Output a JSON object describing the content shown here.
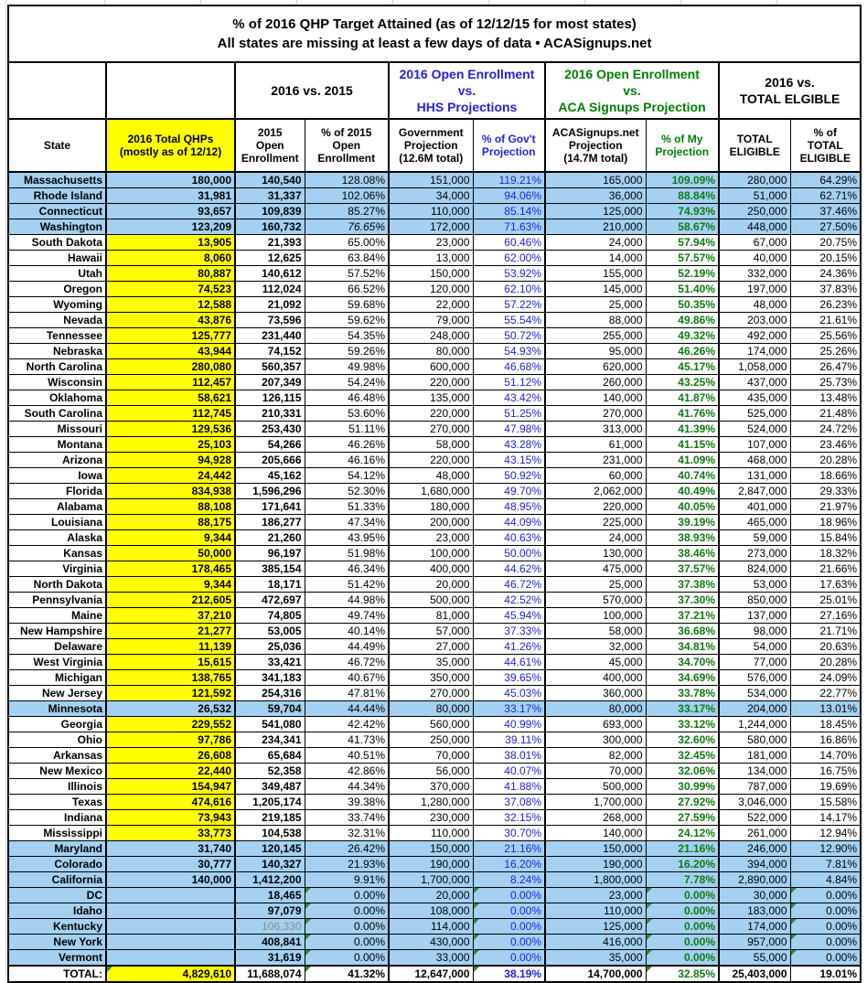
{
  "title": {
    "line1": "% of 2016 QHP Target Attained (as of 12/12/15 for most states)",
    "line2": "All states are missing at least a few days of data • ACASignups.net"
  },
  "groups": {
    "vs2015": "2016 vs. 2015",
    "hhs": "2016 Open Enrollment\nvs.\nHHS Projections",
    "aca": "2016 Open Enrollment\nvs.\nACA Signups Projection",
    "eligible": "2016 vs.\nTOTAL ELGIBLE"
  },
  "colors": {
    "highlight_row_blue": "#A4D1F2",
    "qhp_yellow": "#FFFF00",
    "hhs_blue": "#2222DD",
    "aca_green": "#008000",
    "value_green_bold": "#0F7A0F",
    "error_triangle_green": "#2E8B2E",
    "muted_gray": "#8C8C8C"
  },
  "chart_data": {
    "type": "table",
    "title": "% of 2016 QHP Target Attained (as of 12/12/15 for most states)",
    "subtitle": "All states are missing at least a few days of data • ACASignups.net",
    "columns": [
      "State",
      "2016 Total QHPs\n(mostly as of 12/12)",
      "2015\nOpen\nEnrollment",
      "% of 2015\nOpen\nEnrollment",
      "Government\nProjection\n(12.6M total)",
      "% of Gov't\nProjection",
      "ACASignups.net\nProjection\n(14.7M total)",
      "% of My\nProjection",
      "TOTAL\nELIGIBLE",
      "% of\nTOTAL\nELIGIBLE"
    ],
    "rows": [
      {
        "c": [
          "Massachusetts",
          "180,000",
          "140,540",
          "128.08%",
          "151,000",
          "119.21%",
          "165,000",
          "109.09%",
          "280,000",
          "64.29%"
        ],
        "hl": true
      },
      {
        "c": [
          "Rhode Island",
          "31,981",
          "31,337",
          "102.06%",
          "34,000",
          "94.06%",
          "36,000",
          "88.84%",
          "51,000",
          "62.71%"
        ],
        "hl": true
      },
      {
        "c": [
          "Connecticut",
          "93,657",
          "109,839",
          "85.27%",
          "110,000",
          "85.14%",
          "125,000",
          "74.93%",
          "250,000",
          "37.46%"
        ],
        "hl": true
      },
      {
        "c": [
          "Washington",
          "123,209",
          "160,732",
          "76.65%",
          "172,000",
          "71.63%",
          "210,000",
          "58.67%",
          "448,000",
          "27.50%"
        ],
        "hl": true,
        "it": true
      },
      {
        "c": [
          "South Dakota",
          "13,905",
          "21,393",
          "65.00%",
          "23,000",
          "60.46%",
          "24,000",
          "57.94%",
          "67,000",
          "20.75%"
        ]
      },
      {
        "c": [
          "Hawaii",
          "8,060",
          "12,625",
          "63.84%",
          "13,000",
          "62.00%",
          "14,000",
          "57.57%",
          "40,000",
          "20.15%"
        ]
      },
      {
        "c": [
          "Utah",
          "80,887",
          "140,612",
          "57.52%",
          "150,000",
          "53.92%",
          "155,000",
          "52.19%",
          "332,000",
          "24.36%"
        ]
      },
      {
        "c": [
          "Oregon",
          "74,523",
          "112,024",
          "66.52%",
          "120,000",
          "62.10%",
          "145,000",
          "51.40%",
          "197,000",
          "37.83%"
        ]
      },
      {
        "c": [
          "Wyoming",
          "12,588",
          "21,092",
          "59.68%",
          "22,000",
          "57.22%",
          "25,000",
          "50.35%",
          "48,000",
          "26.23%"
        ]
      },
      {
        "c": [
          "Nevada",
          "43,876",
          "73,596",
          "59.62%",
          "79,000",
          "55.54%",
          "88,000",
          "49.86%",
          "203,000",
          "21.61%"
        ]
      },
      {
        "c": [
          "Tennessee",
          "125,777",
          "231,440",
          "54.35%",
          "248,000",
          "50.72%",
          "255,000",
          "49.32%",
          "492,000",
          "25.56%"
        ]
      },
      {
        "c": [
          "Nebraska",
          "43,944",
          "74,152",
          "59.26%",
          "80,000",
          "54.93%",
          "95,000",
          "46.26%",
          "174,000",
          "25.26%"
        ]
      },
      {
        "c": [
          "North Carolina",
          "280,080",
          "560,357",
          "49.98%",
          "600,000",
          "46.68%",
          "620,000",
          "45.17%",
          "1,058,000",
          "26.47%"
        ]
      },
      {
        "c": [
          "Wisconsin",
          "112,457",
          "207,349",
          "54.24%",
          "220,000",
          "51.12%",
          "260,000",
          "43.25%",
          "437,000",
          "25.73%"
        ]
      },
      {
        "c": [
          "Oklahoma",
          "58,621",
          "126,115",
          "46.48%",
          "135,000",
          "43.42%",
          "140,000",
          "41.87%",
          "435,000",
          "13.48%"
        ]
      },
      {
        "c": [
          "South Carolina",
          "112,745",
          "210,331",
          "53.60%",
          "220,000",
          "51.25%",
          "270,000",
          "41.76%",
          "525,000",
          "21.48%"
        ]
      },
      {
        "c": [
          "Missouri",
          "129,536",
          "253,430",
          "51.11%",
          "270,000",
          "47.98%",
          "313,000",
          "41.39%",
          "524,000",
          "24.72%"
        ]
      },
      {
        "c": [
          "Montana",
          "25,103",
          "54,266",
          "46.26%",
          "58,000",
          "43.28%",
          "61,000",
          "41.15%",
          "107,000",
          "23.46%"
        ]
      },
      {
        "c": [
          "Arizona",
          "94,928",
          "205,666",
          "46.16%",
          "220,000",
          "43.15%",
          "231,000",
          "41.09%",
          "468,000",
          "20.28%"
        ]
      },
      {
        "c": [
          "Iowa",
          "24,442",
          "45,162",
          "54.12%",
          "48,000",
          "50.92%",
          "60,000",
          "40.74%",
          "131,000",
          "18.66%"
        ]
      },
      {
        "c": [
          "Florida",
          "834,938",
          "1,596,296",
          "52.30%",
          "1,680,000",
          "49.70%",
          "2,062,000",
          "40.49%",
          "2,847,000",
          "29.33%"
        ]
      },
      {
        "c": [
          "Alabama",
          "88,108",
          "171,641",
          "51.33%",
          "180,000",
          "48.95%",
          "220,000",
          "40.05%",
          "401,000",
          "21.97%"
        ]
      },
      {
        "c": [
          "Louisiana",
          "88,175",
          "186,277",
          "47.34%",
          "200,000",
          "44.09%",
          "225,000",
          "39.19%",
          "465,000",
          "18.96%"
        ]
      },
      {
        "c": [
          "Alaska",
          "9,344",
          "21,260",
          "43.95%",
          "23,000",
          "40.63%",
          "24,000",
          "38.93%",
          "59,000",
          "15.84%"
        ]
      },
      {
        "c": [
          "Kansas",
          "50,000",
          "96,197",
          "51.98%",
          "100,000",
          "50.00%",
          "130,000",
          "38.46%",
          "273,000",
          "18.32%"
        ]
      },
      {
        "c": [
          "Virginia",
          "178,465",
          "385,154",
          "46.34%",
          "400,000",
          "44.62%",
          "475,000",
          "37.57%",
          "824,000",
          "21.66%"
        ]
      },
      {
        "c": [
          "North Dakota",
          "9,344",
          "18,171",
          "51.42%",
          "20,000",
          "46.72%",
          "25,000",
          "37.38%",
          "53,000",
          "17.63%"
        ]
      },
      {
        "c": [
          "Pennsylvania",
          "212,605",
          "472,697",
          "44.98%",
          "500,000",
          "42.52%",
          "570,000",
          "37.30%",
          "850,000",
          "25.01%"
        ]
      },
      {
        "c": [
          "Maine",
          "37,210",
          "74,805",
          "49.74%",
          "81,000",
          "45.94%",
          "100,000",
          "37.21%",
          "137,000",
          "27.16%"
        ]
      },
      {
        "c": [
          "New Hampshire",
          "21,277",
          "53,005",
          "40.14%",
          "57,000",
          "37.33%",
          "58,000",
          "36.68%",
          "98,000",
          "21.71%"
        ]
      },
      {
        "c": [
          "Delaware",
          "11,139",
          "25,036",
          "44.49%",
          "27,000",
          "41.26%",
          "32,000",
          "34.81%",
          "54,000",
          "20.63%"
        ]
      },
      {
        "c": [
          "West Virginia",
          "15,615",
          "33,421",
          "46.72%",
          "35,000",
          "44.61%",
          "45,000",
          "34.70%",
          "77,000",
          "20.28%"
        ]
      },
      {
        "c": [
          "Michigan",
          "138,765",
          "341,183",
          "40.67%",
          "350,000",
          "39.65%",
          "400,000",
          "34.69%",
          "576,000",
          "24.09%"
        ]
      },
      {
        "c": [
          "New Jersey",
          "121,592",
          "254,316",
          "47.81%",
          "270,000",
          "45.03%",
          "360,000",
          "33.78%",
          "534,000",
          "22.77%"
        ]
      },
      {
        "c": [
          "Minnesota",
          "26,532",
          "59,704",
          "44.44%",
          "80,000",
          "33.17%",
          "80,000",
          "33.17%",
          "204,000",
          "13.01%"
        ],
        "hl": true
      },
      {
        "c": [
          "Georgia",
          "229,552",
          "541,080",
          "42.42%",
          "560,000",
          "40.99%",
          "693,000",
          "33.12%",
          "1,244,000",
          "18.45%"
        ]
      },
      {
        "c": [
          "Ohio",
          "97,786",
          "234,341",
          "41.73%",
          "250,000",
          "39.11%",
          "300,000",
          "32.60%",
          "580,000",
          "16.86%"
        ]
      },
      {
        "c": [
          "Arkansas",
          "26,608",
          "65,684",
          "40.51%",
          "70,000",
          "38.01%",
          "82,000",
          "32.45%",
          "181,000",
          "14.70%"
        ]
      },
      {
        "c": [
          "New Mexico",
          "22,440",
          "52,358",
          "42.86%",
          "56,000",
          "40.07%",
          "70,000",
          "32.06%",
          "134,000",
          "16.75%"
        ]
      },
      {
        "c": [
          "Illinois",
          "154,947",
          "349,487",
          "44.34%",
          "370,000",
          "41.88%",
          "500,000",
          "30.99%",
          "787,000",
          "19.69%"
        ]
      },
      {
        "c": [
          "Texas",
          "474,616",
          "1,205,174",
          "39.38%",
          "1,280,000",
          "37.08%",
          "1,700,000",
          "27.92%",
          "3,046,000",
          "15.58%"
        ]
      },
      {
        "c": [
          "Indiana",
          "73,943",
          "219,185",
          "33.74%",
          "230,000",
          "32.15%",
          "268,000",
          "27.59%",
          "522,000",
          "14.17%"
        ]
      },
      {
        "c": [
          "Mississippi",
          "33,773",
          "104,538",
          "32.31%",
          "110,000",
          "30.70%",
          "140,000",
          "24.12%",
          "261,000",
          "12.94%"
        ]
      },
      {
        "c": [
          "Maryland",
          "31,740",
          "120,145",
          "26.42%",
          "150,000",
          "21.16%",
          "150,000",
          "21.16%",
          "246,000",
          "12.90%"
        ],
        "hl": true
      },
      {
        "c": [
          "Colorado",
          "30,777",
          "140,327",
          "21.93%",
          "190,000",
          "16.20%",
          "190,000",
          "16.20%",
          "394,000",
          "7.81%"
        ],
        "hl": true
      },
      {
        "c": [
          "California",
          "140,000",
          "1,412,200",
          "9.91%",
          "1,700,000",
          "8.24%",
          "1,800,000",
          "7.78%",
          "2,890,000",
          "4.84%"
        ],
        "hl": true
      },
      {
        "c": [
          "DC",
          "",
          "18,465",
          "0.00%",
          "20,000",
          "0.00%",
          "23,000",
          "0.00%",
          "30,000",
          "0.00%"
        ],
        "hl": true,
        "tri": true
      },
      {
        "c": [
          "Idaho",
          "",
          "97,079",
          "0.00%",
          "108,000",
          "0.00%",
          "110,000",
          "0.00%",
          "183,000",
          "0.00%"
        ],
        "hl": true,
        "tri": true
      },
      {
        "c": [
          "Kentucky",
          "",
          "106,330",
          "0.00%",
          "114,000",
          "0.00%",
          "125,000",
          "0.00%",
          "174,000",
          "0.00%"
        ],
        "hl": true,
        "tri": true,
        "gray": true
      },
      {
        "c": [
          "New York",
          "",
          "408,841",
          "0.00%",
          "430,000",
          "0.00%",
          "416,000",
          "0.00%",
          "957,000",
          "0.00%"
        ],
        "hl": true,
        "tri": true
      },
      {
        "c": [
          "Vermont",
          "",
          "31,619",
          "0.00%",
          "33,000",
          "0.00%",
          "35,000",
          "0.00%",
          "55,000",
          "0.00%"
        ],
        "hl": true,
        "tri": true
      }
    ],
    "total": {
      "c": [
        "TOTAL:",
        "4,829,610",
        "11,688,074",
        "41.32%",
        "12,647,000",
        "38.19%",
        "14,700,000",
        "32.85%",
        "25,403,000",
        "19.01%"
      ]
    }
  }
}
